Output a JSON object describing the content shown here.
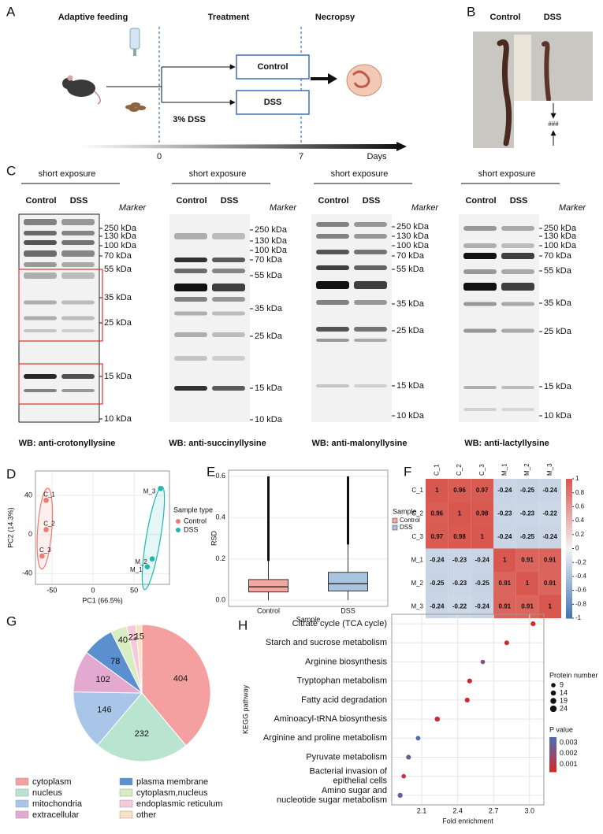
{
  "panel_labels": [
    "A",
    "B",
    "C",
    "D",
    "E",
    "F",
    "G",
    "H"
  ],
  "schematic": {
    "stages": [
      "Adaptive feeding",
      "Treatment",
      "Necropsy"
    ],
    "groups": [
      "Control",
      "DSS"
    ],
    "treatment": "3% DSS",
    "day_ticks": [
      "0",
      "7"
    ],
    "axis_label": "Days"
  },
  "photo": {
    "labels": [
      "Control",
      "DSS"
    ],
    "annotation": "###"
  },
  "blots": {
    "exposure": "short exposure",
    "lanes": [
      "Control",
      "DSS"
    ],
    "marker": "Marker",
    "sizes": [
      "250 kDa",
      "130 kDa",
      "100 kDa",
      "70 kDa",
      "55 kDa",
      "35 kDa",
      "25 kDa",
      "15 kDa",
      "10 kDa"
    ],
    "captions": [
      "WB: anti-crotonyllysine",
      "WB: anti-succinyllysine",
      "WB: anti-malonyllysine",
      "WB: anti-lactyllysine"
    ]
  },
  "chart_data": [
    {
      "type": "scatter",
      "xlabel": "PC1 (66.5%)",
      "ylabel": "PC2 (14.3%)",
      "legend_title": "Sample type",
      "grid": true,
      "xlim": [
        -70,
        93
      ],
      "ylim": [
        -51,
        65
      ],
      "xticks": [
        -50,
        0,
        50
      ],
      "yticks": [
        -40,
        0,
        40
      ],
      "series": [
        {
          "name": "Control",
          "color": "#f0796f",
          "x": [
            -57,
            -57,
            -62
          ],
          "y": [
            35,
            5,
            -22
          ],
          "point_labels": [
            "C_1",
            "C_2",
            "C_3"
          ]
        },
        {
          "name": "DSS",
          "color": "#1fb8ad",
          "x": [
            66,
            72,
            82
          ],
          "y": [
            -33,
            -25,
            47
          ],
          "point_labels": [
            "M_1",
            "M_2",
            "M_3"
          ]
        }
      ]
    },
    {
      "type": "box",
      "xlabel": "Sample",
      "ylabel": "RSD",
      "legend_title": "Sample",
      "grid": true,
      "ylim": [
        -0.03,
        0.63
      ],
      "yticks": [
        {
          "value": 0,
          "label": "0.0"
        },
        0.2,
        0.4,
        0.6
      ],
      "boxes": [
        {
          "name": "Control",
          "color": "#f4a6a0",
          "min": 0,
          "q1": 0.04,
          "median": 0.065,
          "q3": 0.1,
          "whisker_high": 0.19,
          "max": 0.6
        },
        {
          "name": "DSS",
          "color": "#a9c4df",
          "min": 0,
          "q1": 0.045,
          "median": 0.08,
          "q3": 0.135,
          "whisker_high": 0.27,
          "max": 0.6
        }
      ]
    },
    {
      "type": "heatmap",
      "rows": [
        "C_1",
        "C_2",
        "C_3",
        "M_1",
        "M_2",
        "M_3"
      ],
      "columns": [
        "C_1",
        "C_2",
        "C_3",
        "M_1",
        "M_2",
        "M_3"
      ],
      "values": [
        [
          1,
          0.96,
          0.97,
          -0.24,
          -0.25,
          -0.24
        ],
        [
          0.96,
          1,
          0.98,
          -0.23,
          -0.23,
          -0.22
        ],
        [
          0.97,
          0.98,
          1,
          -0.24,
          -0.25,
          -0.24
        ],
        [
          -0.24,
          -0.23,
          -0.24,
          1,
          0.91,
          0.91
        ],
        [
          -0.25,
          -0.23,
          -0.25,
          0.91,
          1,
          0.91
        ],
        [
          -0.24,
          -0.22,
          -0.24,
          0.91,
          0.91,
          1
        ]
      ],
      "zlim": [
        -1,
        1
      ],
      "zticks": [
        1,
        0.8,
        0.6,
        0.4,
        0.2,
        0,
        -0.2,
        -0.4,
        -0.6,
        -0.8,
        -1
      ],
      "low_color": "#3f73b5",
      "mid_color": "#f4f4f4",
      "high_color": "#d8574e"
    },
    {
      "type": "pie",
      "categories": [
        "cytoplasm",
        "nucleus",
        "mitochondria",
        "extracellular",
        "plasma membrane",
        "cytoplasm,nucleus",
        "endoplasmic reticulum",
        "other"
      ],
      "values": [
        404,
        232,
        146,
        102,
        78,
        40,
        22,
        15
      ],
      "colors": [
        "#f4a0a0",
        "#b9e4cf",
        "#a9c6e8",
        "#e3a9d0",
        "#5a8fd0",
        "#d9edc2",
        "#f6c8da",
        "#fbe1c2"
      ]
    },
    {
      "type": "dot",
      "xlabel": "Fold enrichment",
      "ylabel": "KEGG pathway",
      "grid": true,
      "categories": [
        "Citrate cycle (TCA cycle)",
        "Starch and sucrose metabolism",
        "Arginine biosynthesis",
        "Tryptophan metabolism",
        "Fatty acid degradation",
        "Aminoacyl-tRNA biosynthesis",
        "Arginine and proline metabolism",
        "Pyruvate metabolism",
        "Bacterial invasion of\nepithelial cells",
        "Amino sugar and\nnucleotide sugar metabolism"
      ],
      "label_colors": [
        "#d62728",
        "#222222",
        "#222222",
        "#222222",
        "#222222",
        "#222222",
        "#222222",
        "#222222",
        "#222222",
        "#222222"
      ],
      "x": [
        3.03,
        2.81,
        2.61,
        2.5,
        2.48,
        2.23,
        2.07,
        1.99,
        1.95,
        1.92
      ],
      "size": [
        12,
        11,
        9,
        12,
        12,
        14,
        10,
        12,
        9,
        13
      ],
      "p": [
        0.0003,
        0.0005,
        0.0022,
        0.0004,
        0.0004,
        0.0006,
        0.0034,
        0.0026,
        0.0007,
        0.0029
      ],
      "xlim": [
        1.85,
        3.12
      ],
      "xticks": [
        2.1,
        2.4,
        2.7,
        {
          "value": 3,
          "label": "3.0"
        }
      ],
      "size_title": "Protein number",
      "size_ticks": [
        9,
        14,
        19,
        24
      ],
      "color_title": "P value",
      "plim": [
        0.0003,
        0.0035
      ],
      "pticks": [
        0.003,
        0.002,
        0.001
      ],
      "low_color": "#d62728",
      "high_color": "#4a6fb5"
    }
  ]
}
